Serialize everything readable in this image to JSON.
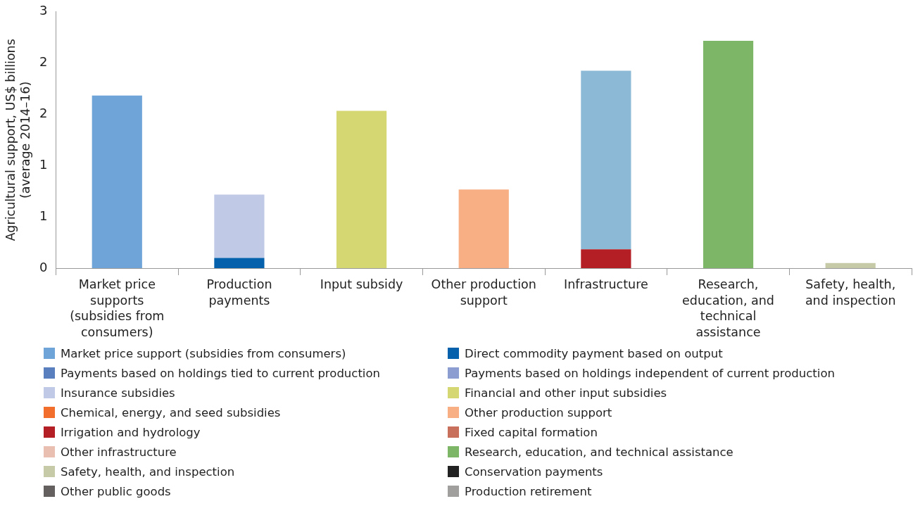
{
  "chart_data": {
    "type": "bar",
    "stacked": true,
    "ylabel": "Agricultural support, US$ billions (average 2014–16)",
    "categories": [
      "Market price supports (subsidies from consumers)",
      "Production payments",
      "Input subsidy",
      "Other production support",
      "Infrastructure",
      "Research, education, and technical assistance",
      "Safety, health, and inspection"
    ],
    "ylim": [
      0,
      3
    ],
    "yticks": [
      0,
      {
        "value": 0.6,
        "label": "1"
      },
      {
        "value": 1.2,
        "label": "1"
      },
      {
        "value": 1.8,
        "label": "2"
      },
      {
        "value": 2.4,
        "label": "2"
      },
      3
    ],
    "grid": false,
    "legend": "bottom",
    "series": [
      {
        "name": "Market price support (subsidies from consumers)",
        "color": "#6fa4d8",
        "values": [
          2.02,
          null,
          null,
          null,
          null,
          null,
          null
        ]
      },
      {
        "name": "Direct commodity payment based on output",
        "color": "#0561ab",
        "values": [
          null,
          0.12,
          null,
          null,
          null,
          null,
          null
        ]
      },
      {
        "name": "Payments based on holdings tied to current production",
        "color": "#5a7fbf",
        "values": [
          null,
          null,
          null,
          null,
          null,
          null,
          null
        ]
      },
      {
        "name": "Payments based on holdings independent of current production",
        "color": "#8c9ed1",
        "values": [
          null,
          null,
          null,
          null,
          null,
          null,
          null
        ]
      },
      {
        "name": "Insurance subsidies",
        "color": "#c0c9e6",
        "values": [
          null,
          0.74,
          null,
          null,
          null,
          null,
          null
        ]
      },
      {
        "name": "Financial and other input subsidies",
        "color": "#d5d872",
        "values": [
          null,
          null,
          1.84,
          null,
          null,
          null,
          null
        ]
      },
      {
        "name": "Chemical, energy, and seed subsidies",
        "color": "#f26e2c",
        "values": [
          null,
          null,
          null,
          null,
          null,
          null,
          null
        ]
      },
      {
        "name": "Other production support",
        "color": "#f8af84",
        "values": [
          null,
          null,
          null,
          0.92,
          null,
          null,
          null
        ]
      },
      {
        "name": "Irrigation and hydrology",
        "color": "#b41f26",
        "values": [
          null,
          null,
          null,
          null,
          0.22,
          null,
          null
        ]
      },
      {
        "name": "Fixed capital formation",
        "color": "#c8705c",
        "values": [
          null,
          null,
          null,
          null,
          null,
          null,
          null
        ]
      },
      {
        "name": "Other infrastructure",
        "color": "#e8bfb0",
        "values": [
          null,
          null,
          null,
          null,
          null,
          null,
          null
        ]
      },
      {
        "name": "Research, education, and technical assistance",
        "color": "#7db666",
        "values": [
          null,
          null,
          null,
          null,
          null,
          2.66,
          null
        ]
      },
      {
        "name": "Safety, health, and inspection",
        "color": "#c6caa6",
        "values": [
          null,
          null,
          null,
          null,
          null,
          null,
          0.06
        ]
      },
      {
        "name": "Conservation payments",
        "color": "#222222",
        "values": [
          null,
          null,
          null,
          null,
          null,
          null,
          null
        ]
      },
      {
        "name": "Other public goods",
        "color": "#646060",
        "values": [
          null,
          null,
          null,
          null,
          null,
          null,
          null
        ]
      },
      {
        "name": "Production retirement",
        "color": "#a19e9e",
        "values": [
          null,
          null,
          null,
          null,
          null,
          null,
          null
        ]
      },
      {
        "color": "#8cbad6",
        "values": [
          null,
          null,
          null,
          null,
          2.09,
          null,
          null
        ]
      }
    ]
  }
}
